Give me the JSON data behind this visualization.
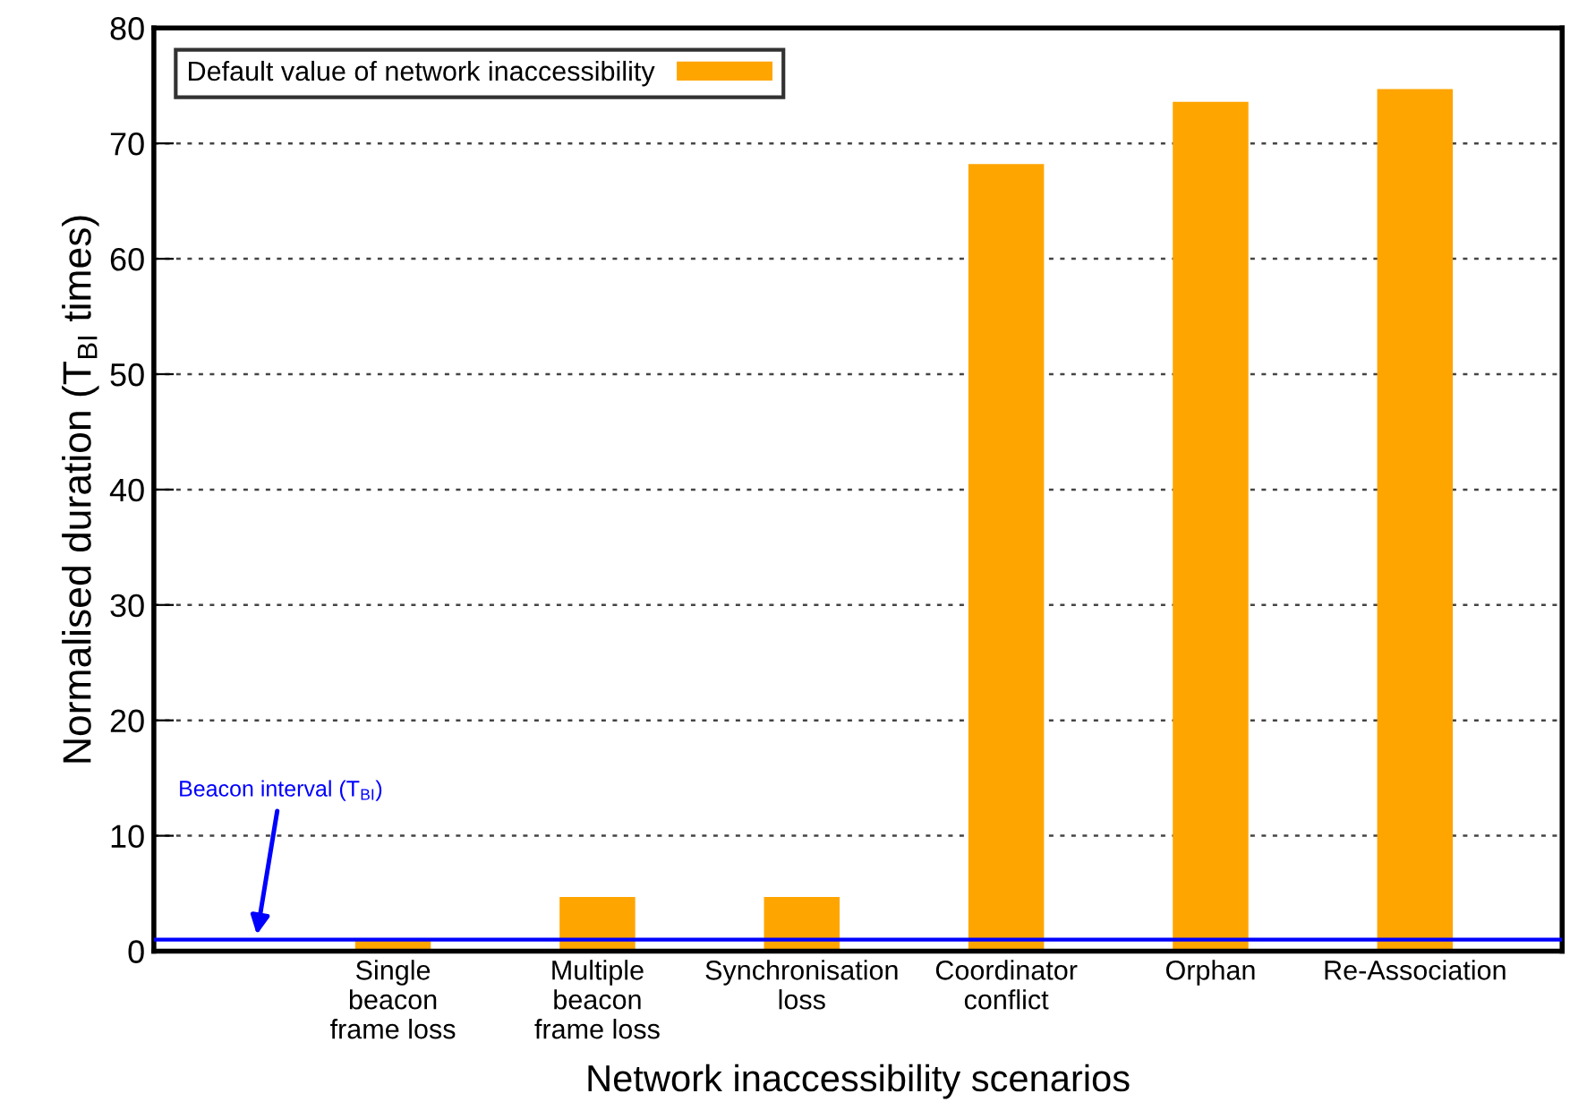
{
  "chart_data": {
    "type": "bar",
    "xlabel": "Network inaccessibility scenarios",
    "ylabel": "Normalised duration (T$_{BI}$ times)",
    "categories": [
      "Single\nbeacon\nframe loss",
      "Multiple\nbeacon\nframe loss",
      "Synchronisation\nloss",
      "Coordinator\nconflict",
      "Orphan",
      "Re-Association"
    ],
    "series": [
      {
        "name": "Default value of network inaccessibility",
        "color": "#ffa500",
        "values": [
          1.0,
          4.7,
          4.7,
          68.2,
          73.6,
          74.7
        ]
      }
    ],
    "ylim": [
      0,
      80
    ],
    "yticks": [
      0,
      10,
      20,
      30,
      40,
      50,
      60,
      70,
      80
    ],
    "ref_lines": [
      {
        "axis": "y",
        "value": 1,
        "label": "Beacon interval (T$_{BI}$)",
        "color": "#0000ff",
        "line_style": "solid"
      }
    ],
    "grid": "y",
    "legend": "top left"
  }
}
